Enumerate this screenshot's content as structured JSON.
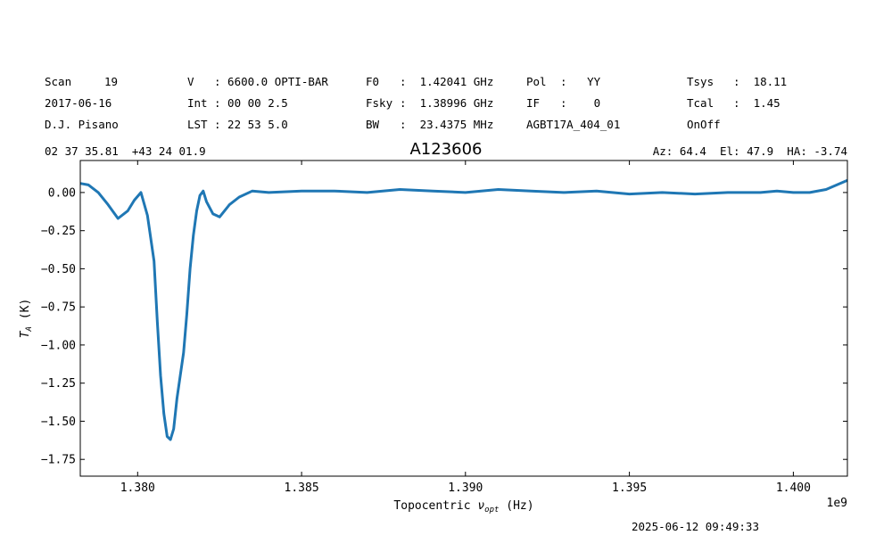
{
  "header": {
    "row1": {
      "scan_label": "Scan",
      "scan_value": "19",
      "v_label": "V",
      "v_value": ": 6600.0 OPTI-BAR",
      "f0_label": "F0",
      "f0_value": ":  1.42041 GHz",
      "pol_label": "Pol",
      "pol_value": ":   YY",
      "tsys_label": "Tsys",
      "tsys_value": ":  18.11"
    },
    "row2": {
      "date": "2017-06-16",
      "int_label": "Int",
      "int_value": ": 00 00 2.5",
      "fsky_label": "Fsky",
      "fsky_value": ":  1.38996 GHz",
      "if_label": "IF",
      "if_value": ":    0",
      "tcal_label": "Tcal",
      "tcal_value": ":  1.45"
    },
    "row3": {
      "observer": "D.J. Pisano",
      "lst_label": "LST",
      "lst_value": ": 22 53 5.0",
      "bw_label": "BW",
      "bw_value": ":  23.4375 MHz",
      "project": "AGBT17A_404_01",
      "procedure": "OnOff"
    },
    "coords": "02 37 35.81  +43 24 01.9",
    "source": "A123606",
    "azelha": "Az: 64.4  El: 47.9  HA: -3.74"
  },
  "timestamp": "2025-06-12 09:49:33",
  "chart_data": {
    "type": "line",
    "title": "A123606",
    "xlabel": "Topocentric ν_opt (Hz)",
    "ylabel": "T_A (K)",
    "x_offset_label": "1e9",
    "xlim": [
      1.37825,
      1.40165
    ],
    "ylim": [
      -1.86,
      0.21
    ],
    "xticks": [
      1.38,
      1.385,
      1.39,
      1.395,
      1.4
    ],
    "xtick_labels": [
      "1.380",
      "1.385",
      "1.390",
      "1.395",
      "1.400"
    ],
    "yticks": [
      0.0,
      -0.25,
      -0.5,
      -0.75,
      -1.0,
      -1.25,
      -1.5,
      -1.75
    ],
    "ytick_labels": [
      "0.00",
      "−0.25",
      "−0.50",
      "−0.75",
      "−1.00",
      "−1.25",
      "−1.50",
      "−1.75"
    ],
    "grid": false,
    "color": "#1f77b4",
    "series": [
      {
        "x": [
          1.37825,
          1.3785,
          1.3788,
          1.3791,
          1.3794,
          1.3797,
          1.3799,
          1.3801,
          1.3803,
          1.3805,
          1.3806,
          1.3807,
          1.3808,
          1.3809,
          1.381,
          1.3811,
          1.3812,
          1.3813,
          1.3814,
          1.3815,
          1.3816,
          1.3817,
          1.3818,
          1.3819,
          1.382,
          1.3821,
          1.3823,
          1.3825,
          1.3828,
          1.3831,
          1.3835,
          1.384,
          1.385,
          1.386,
          1.387,
          1.388,
          1.389,
          1.39,
          1.391,
          1.392,
          1.393,
          1.394,
          1.395,
          1.396,
          1.397,
          1.398,
          1.399,
          1.3995,
          1.4,
          1.4005,
          1.401,
          1.40165
        ],
        "y": [
          0.06,
          0.05,
          0.0,
          -0.08,
          -0.17,
          -0.12,
          -0.05,
          0.0,
          -0.15,
          -0.45,
          -0.85,
          -1.2,
          -1.45,
          -1.6,
          -1.62,
          -1.55,
          -1.35,
          -1.2,
          -1.05,
          -0.8,
          -0.5,
          -0.28,
          -0.12,
          -0.02,
          0.01,
          -0.06,
          -0.14,
          -0.16,
          -0.08,
          -0.03,
          0.01,
          0.0,
          0.01,
          0.01,
          0.0,
          0.02,
          0.01,
          0.0,
          0.02,
          0.01,
          0.0,
          0.01,
          -0.01,
          0.0,
          -0.01,
          0.0,
          0.0,
          0.01,
          0.0,
          0.0,
          0.02,
          0.08
        ]
      }
    ]
  }
}
